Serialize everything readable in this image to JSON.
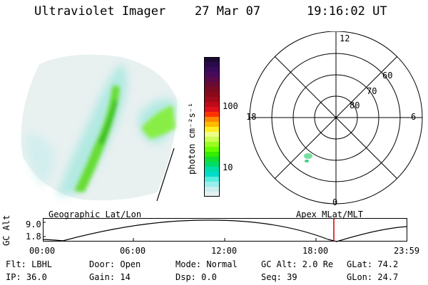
{
  "header": {
    "title": "Ultraviolet Imager",
    "date": "27 Mar 07",
    "time": "19:16:02 UT"
  },
  "colorbar": {
    "unit_label": "photon cm⁻²s⁻¹",
    "ticks": [
      "100",
      "10"
    ],
    "colors": [
      "#1a0a33",
      "#2a0a4a",
      "#3a0a5a",
      "#4a0a5a",
      "#5a0a4a",
      "#6a0a33",
      "#7a0a22",
      "#8a0a1a",
      "#a00a1a",
      "#c00a1a",
      "#e0101a",
      "#ff3300",
      "#ff8800",
      "#ffbb00",
      "#ffee22",
      "#eeff88",
      "#ccff55",
      "#99ff22",
      "#66ff00",
      "#33ee00",
      "#11dd33",
      "#00dd66",
      "#00ddaa",
      "#00ddcc",
      "#55eedd",
      "#99eeee",
      "#cceeee",
      "#e5f2f2"
    ]
  },
  "polar_grid": {
    "mlt_labels": [
      "12",
      "18",
      "6",
      "0"
    ],
    "lat_labels": [
      "60",
      "70",
      "80"
    ]
  },
  "orbit": {
    "left_label": "Geographic Lat/Lon",
    "right_label": "Apex  MLat/MLT",
    "y_axis_label": "GC Alt",
    "y_ticks": [
      "9.0",
      "1.8"
    ],
    "x_ticks": [
      "00:00",
      "06:00",
      "12:00",
      "18:00",
      "23:59"
    ],
    "current_marker_color": "#cc0000"
  },
  "status": {
    "flt": "Flt: LBHL",
    "ip": "IP: 36.0",
    "door": "Door: Open",
    "gain": "Gain: 14",
    "mode": "Mode: Normal",
    "dsp": "Dsp:    0.0",
    "gcalt": "GC Alt: 2.0 Re",
    "seq": "Seq: 39",
    "glat": "GLat:  74.2",
    "glon": "GLon:  24.7"
  }
}
